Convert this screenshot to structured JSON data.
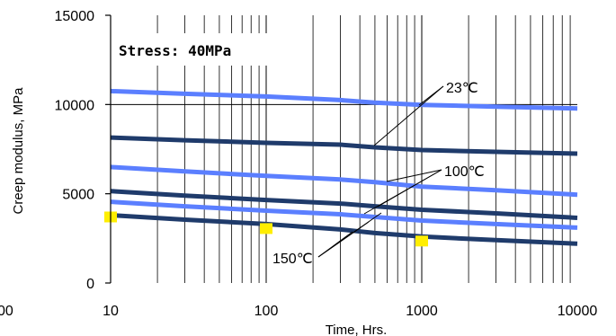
{
  "chart_data": {
    "type": "line",
    "title": "",
    "xlabel": "Time, Hrs.",
    "ylabel": "Creep modulus, MPa",
    "xscale": "log",
    "xlim": [
      10,
      10000
    ],
    "ylim": [
      0,
      15000
    ],
    "x_ticks": [
      "10",
      "100",
      "1000",
      "10000"
    ],
    "y_ticks": [
      "0",
      "5000",
      "10000",
      "15000"
    ],
    "clipped_left_label": "00",
    "grid": "vertical log gridlines, horizontal line at 10000",
    "stress_label": "Stress: 40MPa",
    "annotations": [
      "23℃",
      "100℃",
      "150℃"
    ],
    "colors": {
      "light": "#5b7fff",
      "dark": "#1f3b6b",
      "marker": "#ffee00"
    },
    "series": [
      {
        "color": "#5b7fff",
        "x": [
          10,
          30,
          100,
          300,
          500,
          1000,
          3000,
          10000
        ],
        "values": [
          10750,
          10600,
          10450,
          10250,
          10100,
          9980,
          9880,
          9780
        ]
      },
      {
        "color": "#1f3b6b",
        "x": [
          10,
          30,
          100,
          300,
          500,
          1000,
          3000,
          10000
        ],
        "values": [
          8150,
          8000,
          7850,
          7750,
          7600,
          7450,
          7350,
          7250
        ]
      },
      {
        "color": "#5b7fff",
        "x": [
          10,
          30,
          100,
          300,
          500,
          1000,
          3000,
          10000
        ],
        "values": [
          6500,
          6250,
          6000,
          5800,
          5650,
          5400,
          5200,
          4950
        ]
      },
      {
        "color": "#1f3b6b",
        "x": [
          10,
          30,
          100,
          300,
          500,
          1000,
          3000,
          10000
        ],
        "values": [
          5150,
          4900,
          4650,
          4450,
          4300,
          4100,
          3900,
          3650
        ]
      },
      {
        "color": "#5b7fff",
        "x": [
          10,
          30,
          100,
          300,
          500,
          1000,
          3000,
          10000
        ],
        "values": [
          4550,
          4300,
          4050,
          3850,
          3700,
          3500,
          3300,
          3100
        ]
      },
      {
        "color": "#1f3b6b",
        "x": [
          10,
          30,
          100,
          300,
          500,
          1000,
          3000,
          10000
        ],
        "values": [
          3800,
          3550,
          3300,
          3000,
          2800,
          2600,
          2400,
          2200
        ]
      }
    ],
    "markers": [
      {
        "x": 10,
        "y": 3700
      },
      {
        "x": 100,
        "y": 3050
      },
      {
        "x": 1000,
        "y": 2350
      }
    ]
  }
}
